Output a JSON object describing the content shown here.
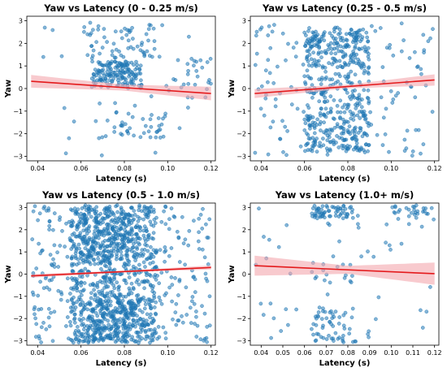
{
  "chart_data": [
    {
      "type": "scatter",
      "title": "Yaw vs Latency (0 - 0.25 m/s)",
      "xlabel": "Latency (s)",
      "ylabel": "Yaw",
      "xlim": [
        0.035,
        0.122
      ],
      "ylim": [
        -3.2,
        3.2
      ],
      "xticks": [
        0.04,
        0.06,
        0.08,
        0.1,
        0.12
      ],
      "xtick_labels": [
        "0.04",
        "0.06",
        "0.08",
        "0.10",
        "0.12"
      ],
      "yticks": [
        -3,
        -2,
        -1,
        0,
        1,
        2,
        3
      ],
      "ytick_labels": [
        "−3",
        "−2",
        "−1",
        "0",
        "1",
        "2",
        "3"
      ],
      "point_color": "#1f77b4",
      "fit_color": "#e41a1c",
      "band_color": "#f4a6ad",
      "fit_line": {
        "x": [
          0.037,
          0.12
        ],
        "y": [
          0.32,
          -0.22
        ]
      },
      "band_halfwidth": {
        "x": [
          0.037,
          0.08,
          0.12
        ],
        "w": [
          0.28,
          0.13,
          0.3
        ]
      },
      "seed": 11,
      "n_points": 320,
      "clusters": [
        {
          "w": 0.5,
          "x": [
            0.065,
            0.088
          ],
          "y": [
            0.0,
            1.2
          ]
        },
        {
          "w": 0.12,
          "x": [
            0.06,
            0.095
          ],
          "y": [
            1.3,
            2.7
          ]
        },
        {
          "w": 0.15,
          "x": [
            0.065,
            0.1
          ],
          "y": [
            -2.2,
            -1.0
          ]
        },
        {
          "w": 0.13,
          "x": [
            0.037,
            0.12
          ],
          "y": [
            -3.0,
            3.0
          ]
        },
        {
          "w": 0.1,
          "x": [
            0.1,
            0.12
          ],
          "y": [
            -0.6,
            1.4
          ]
        }
      ]
    },
    {
      "type": "scatter",
      "title": "Yaw vs Latency (0.25 - 0.5 m/s)",
      "xlabel": "Latency (s)",
      "ylabel": "Yaw",
      "xlim": [
        0.035,
        0.122
      ],
      "ylim": [
        -3.2,
        3.2
      ],
      "xticks": [
        0.04,
        0.06,
        0.08,
        0.1,
        0.12
      ],
      "xtick_labels": [
        "0.04",
        "0.06",
        "0.08",
        "0.10",
        "0.12"
      ],
      "yticks": [
        -3,
        -2,
        -1,
        0,
        1,
        2,
        3
      ],
      "ytick_labels": [
        "−3",
        "−2",
        "−1",
        "0",
        "1",
        "2",
        "3"
      ],
      "point_color": "#1f77b4",
      "fit_color": "#e41a1c",
      "band_color": "#f4a6ad",
      "fit_line": {
        "x": [
          0.037,
          0.12
        ],
        "y": [
          -0.22,
          0.38
        ]
      },
      "band_halfwidth": {
        "x": [
          0.037,
          0.08,
          0.12
        ],
        "w": [
          0.2,
          0.08,
          0.25
        ]
      },
      "seed": 23,
      "n_points": 620,
      "clusters": [
        {
          "w": 0.3,
          "x": [
            0.06,
            0.09
          ],
          "y": [
            0.9,
            2.7
          ]
        },
        {
          "w": 0.3,
          "x": [
            0.06,
            0.09
          ],
          "y": [
            -2.8,
            -1.0
          ]
        },
        {
          "w": 0.15,
          "x": [
            0.06,
            0.09
          ],
          "y": [
            -0.9,
            0.8
          ]
        },
        {
          "w": 0.25,
          "x": [
            0.037,
            0.12
          ],
          "y": [
            -3.0,
            3.0
          ]
        }
      ]
    },
    {
      "type": "scatter",
      "title": "Yaw vs Latency (0.5 - 1.0 m/s)",
      "xlabel": "Latency (s)",
      "ylabel": "Yaw",
      "xlim": [
        0.035,
        0.122
      ],
      "ylim": [
        -3.2,
        3.2
      ],
      "xticks": [
        0.04,
        0.06,
        0.08,
        0.1,
        0.12
      ],
      "xtick_labels": [
        "0.04",
        "0.06",
        "0.08",
        "0.10",
        "0.12"
      ],
      "yticks": [
        -3,
        -2,
        -1,
        0,
        1,
        2,
        3
      ],
      "ytick_labels": [
        "−3",
        "−2",
        "−1",
        "0",
        "1",
        "2",
        "3"
      ],
      "point_color": "#1f77b4",
      "fit_color": "#e41a1c",
      "band_color": "#f4a6ad",
      "fit_line": {
        "x": [
          0.037,
          0.12
        ],
        "y": [
          -0.08,
          0.3
        ]
      },
      "band_halfwidth": {
        "x": [
          0.037,
          0.08,
          0.12
        ],
        "w": [
          0.08,
          0.04,
          0.09
        ]
      },
      "seed": 37,
      "n_points": 1400,
      "clusters": [
        {
          "w": 0.55,
          "x": [
            0.055,
            0.095
          ],
          "y": [
            -3.1,
            3.1
          ]
        },
        {
          "w": 0.25,
          "x": [
            0.037,
            0.12
          ],
          "y": [
            -3.1,
            3.1
          ]
        },
        {
          "w": 0.1,
          "x": [
            0.06,
            0.085
          ],
          "y": [
            0.8,
            3.0
          ]
        },
        {
          "w": 0.1,
          "x": [
            0.06,
            0.085
          ],
          "y": [
            -3.0,
            -1.2
          ]
        }
      ]
    },
    {
      "type": "scatter",
      "title": "Yaw vs Latency (1.0+ m/s)",
      "xlabel": "Latency (s)",
      "ylabel": "Yaw",
      "xlim": [
        0.035,
        0.122
      ],
      "ylim": [
        -3.2,
        3.2
      ],
      "xticks": [
        0.04,
        0.05,
        0.06,
        0.07,
        0.08,
        0.09,
        0.1,
        0.11,
        0.12
      ],
      "xtick_labels": [
        "0.04",
        "0.05",
        "0.06",
        "0.07",
        "0.08",
        "0.09",
        "0.10",
        "0.11",
        "0.12"
      ],
      "yticks": [
        -3,
        -2,
        -1,
        0,
        1,
        2,
        3
      ],
      "ytick_labels": [
        "−3",
        "−2",
        "−1",
        "0",
        "1",
        "2",
        "3"
      ],
      "point_color": "#1f77b4",
      "fit_color": "#e41a1c",
      "band_color": "#f4a6ad",
      "fit_line": {
        "x": [
          0.037,
          0.12
        ],
        "y": [
          0.38,
          0.02
        ]
      },
      "band_halfwidth": {
        "x": [
          0.037,
          0.08,
          0.12
        ],
        "w": [
          0.45,
          0.18,
          0.5
        ]
      },
      "seed": 53,
      "n_points": 210,
      "clusters": [
        {
          "w": 0.3,
          "x": [
            0.063,
            0.083
          ],
          "y": [
            2.5,
            3.1
          ]
        },
        {
          "w": 0.25,
          "x": [
            0.063,
            0.085
          ],
          "y": [
            -3.1,
            -1.5
          ]
        },
        {
          "w": 0.1,
          "x": [
            0.063,
            0.085
          ],
          "y": [
            -0.4,
            0.5
          ]
        },
        {
          "w": 0.2,
          "x": [
            0.037,
            0.12
          ],
          "y": [
            -3.0,
            3.0
          ]
        },
        {
          "w": 0.15,
          "x": [
            0.1,
            0.12
          ],
          "y": [
            2.4,
            3.1
          ]
        }
      ]
    }
  ]
}
